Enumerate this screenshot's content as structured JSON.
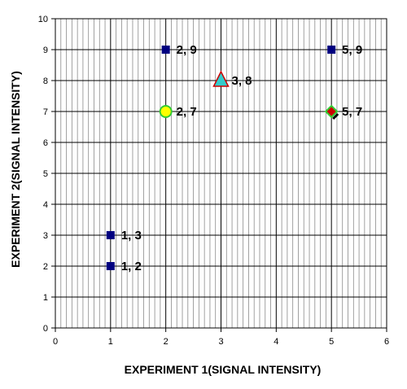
{
  "chart_data": {
    "type": "scatter",
    "xlabel": "EXPERIMENT 1(SIGNAL INTENSITY)",
    "ylabel": "EXPERIMENT 2(SIGNAL INTENSITY)",
    "xlim": [
      0,
      6
    ],
    "ylim": [
      0,
      10
    ],
    "x_ticks": [
      "0",
      "1",
      "2",
      "3",
      "4",
      "5",
      "6"
    ],
    "y_ticks": [
      "0",
      "1",
      "2",
      "3",
      "4",
      "5",
      "6",
      "7",
      "8",
      "9",
      "10"
    ],
    "grid": true,
    "points": [
      {
        "x": 1,
        "y": 2,
        "label": "1, 2",
        "marker": "square",
        "color": "#000080"
      },
      {
        "x": 1,
        "y": 3,
        "label": "1, 3",
        "marker": "square",
        "color": "#000080"
      },
      {
        "x": 2,
        "y": 7,
        "label": "2, 7",
        "marker": "circle",
        "color": "#ffff00",
        "edge": "#33cc33"
      },
      {
        "x": 2,
        "y": 9,
        "label": "2, 9",
        "marker": "square",
        "color": "#000080"
      },
      {
        "x": 3,
        "y": 8,
        "label": "3, 8",
        "marker": "triangle",
        "color": "#33cccc",
        "edge": "#cc0000"
      },
      {
        "x": 5,
        "y": 7,
        "label": "5, 7",
        "marker": "diamond",
        "color": "#cc0000",
        "edge": "#33cc33"
      },
      {
        "x": 5,
        "y": 9,
        "label": "5, 9",
        "marker": "square",
        "color": "#000080"
      }
    ]
  }
}
